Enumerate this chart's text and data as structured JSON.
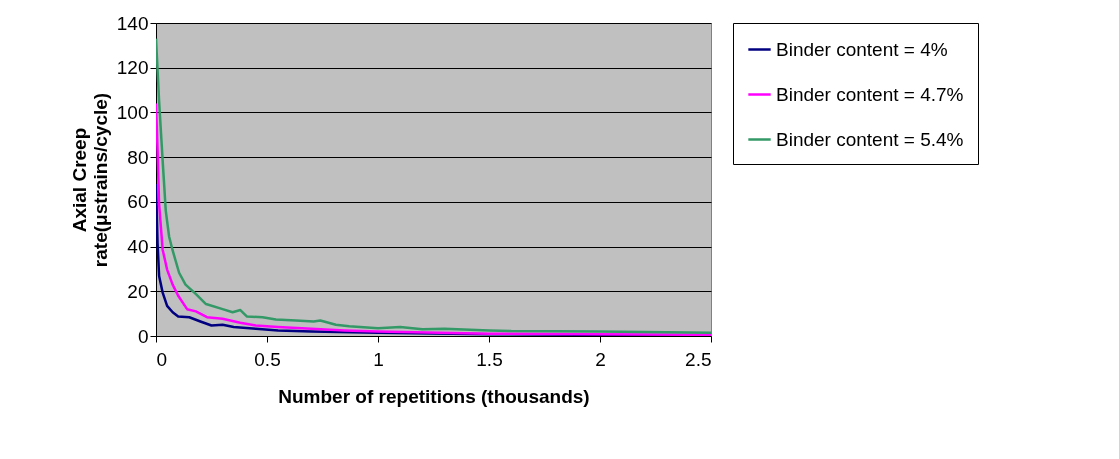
{
  "chart_data": {
    "type": "line",
    "xlabel": "Number of repetitions (thousands)",
    "ylabel": "Axial Creep rate(μstrains/cycle)",
    "xlim": [
      0,
      2.5
    ],
    "xticks": [
      0,
      0.5,
      1,
      1.5,
      2,
      2.5
    ],
    "ylim": [
      0,
      140
    ],
    "yticks": [
      0,
      20,
      40,
      60,
      80,
      100,
      120,
      140
    ],
    "grid": "y",
    "legend": "right",
    "marker": "none",
    "line_style": "solid",
    "series": [
      {
        "name": "Binder content = 4%",
        "color": "#000080",
        "x": [
          0,
          0.007,
          0.014,
          0.03,
          0.05,
          0.075,
          0.1,
          0.15,
          0.2,
          0.25,
          0.3,
          0.35,
          0.45,
          0.55,
          0.7,
          1.0,
          1.5,
          2.0,
          2.5
        ],
        "values": [
          68,
          41.5,
          26.8,
          19.4,
          13.5,
          10.6,
          8.7,
          8.4,
          6.5,
          4.7,
          5,
          4,
          3.2,
          2.5,
          2,
          1.5,
          0.8,
          0.5,
          0.3
        ]
      },
      {
        "name": "Binder content = 4.7%",
        "color": "#ff00ff",
        "x": [
          0,
          0.007,
          0.014,
          0.03,
          0.05,
          0.075,
          0.1,
          0.14,
          0.18,
          0.23,
          0.3,
          0.38,
          0.45,
          0.55,
          0.7,
          0.85,
          1.0,
          1.5,
          2.0,
          2.5
        ],
        "values": [
          104,
          83,
          59,
          38.6,
          29.7,
          23,
          18,
          12,
          11,
          8.4,
          7.7,
          5.9,
          4.7,
          4,
          3.2,
          2.5,
          2,
          1,
          0.8,
          0.5
        ]
      },
      {
        "name": "Binder content = 5.4%",
        "color": "#339966",
        "x": [
          0,
          0.014,
          0.029,
          0.044,
          0.059,
          0.074,
          0.104,
          0.133,
          0.18,
          0.225,
          0.3,
          0.345,
          0.38,
          0.41,
          0.48,
          0.54,
          0.63,
          0.71,
          0.74,
          0.81,
          0.87,
          1.0,
          1.1,
          1.2,
          1.3,
          1.5,
          1.6,
          2.0,
          2.5
        ],
        "values": [
          133,
          105,
          80,
          56,
          44.5,
          38.6,
          28.3,
          23,
          18.7,
          14.3,
          12,
          10.6,
          11.6,
          8.7,
          8.4,
          7.4,
          6.9,
          6.5,
          6.9,
          5,
          4.4,
          3.5,
          4,
          3,
          3.2,
          2.5,
          2.2,
          2,
          1.5
        ]
      }
    ]
  }
}
